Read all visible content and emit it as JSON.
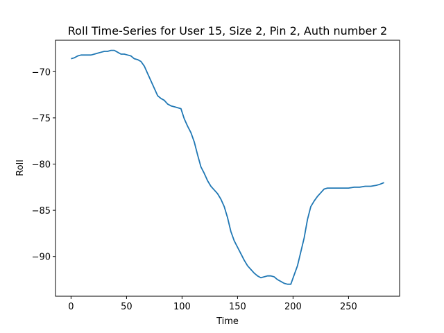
{
  "chart_data": {
    "type": "line",
    "title": "Roll Time-Series for User 15, Size 2, Pin 2, Auth number 2",
    "xlabel": "Time",
    "ylabel": "Roll",
    "xlim": [
      -14,
      296
    ],
    "ylim": [
      -94.3,
      -66.6
    ],
    "xticks": [
      0,
      50,
      100,
      150,
      200,
      250
    ],
    "yticks": [
      -90,
      -85,
      -80,
      -75,
      -70
    ],
    "ytick_labels": [
      "−90",
      "−85",
      "−80",
      "−75",
      "−70"
    ],
    "grid": false,
    "color": "#1f77b4",
    "series": [
      {
        "x": [
          0,
          3,
          6,
          9,
          12,
          15,
          18,
          21,
          24,
          27,
          30,
          33,
          36,
          39,
          42,
          45,
          48,
          51,
          54,
          57,
          60,
          63,
          66,
          69,
          72,
          75,
          78,
          81,
          84,
          87,
          90,
          93,
          96,
          99,
          102,
          105,
          108,
          111,
          114,
          117,
          120,
          123,
          126,
          129,
          132,
          135,
          138,
          141,
          144,
          147,
          150,
          153,
          156,
          159,
          162,
          165,
          168,
          171,
          174,
          177,
          180,
          183,
          186,
          189,
          192,
          195,
          198,
          201,
          204,
          207,
          210,
          213,
          216,
          219,
          222,
          225,
          228,
          231,
          234,
          237,
          240,
          245,
          250,
          255,
          260,
          265,
          270,
          275,
          278,
          282
        ],
        "y": [
          -68.6,
          -68.5,
          -68.3,
          -68.2,
          -68.2,
          -68.2,
          -68.2,
          -68.1,
          -68.0,
          -67.9,
          -67.8,
          -67.8,
          -67.7,
          -67.7,
          -67.9,
          -68.1,
          -68.1,
          -68.2,
          -68.3,
          -68.6,
          -68.7,
          -68.9,
          -69.4,
          -70.2,
          -71.0,
          -71.8,
          -72.6,
          -72.9,
          -73.1,
          -73.5,
          -73.7,
          -73.8,
          -73.9,
          -74.0,
          -75.1,
          -75.9,
          -76.6,
          -77.6,
          -79.0,
          -80.3,
          -81.0,
          -81.8,
          -82.4,
          -82.8,
          -83.2,
          -83.8,
          -84.6,
          -85.8,
          -87.3,
          -88.3,
          -89.0,
          -89.7,
          -90.4,
          -91.0,
          -91.4,
          -91.8,
          -92.1,
          -92.3,
          -92.2,
          -92.1,
          -92.1,
          -92.2,
          -92.5,
          -92.7,
          -92.9,
          -93.0,
          -93.0,
          -92.0,
          -91.0,
          -89.5,
          -88.0,
          -86.0,
          -84.6,
          -84.0,
          -83.5,
          -83.1,
          -82.7,
          -82.6,
          -82.6,
          -82.6,
          -82.6,
          -82.6,
          -82.6,
          -82.5,
          -82.5,
          -82.4,
          -82.4,
          -82.3,
          -82.2,
          -82.0
        ]
      }
    ]
  }
}
